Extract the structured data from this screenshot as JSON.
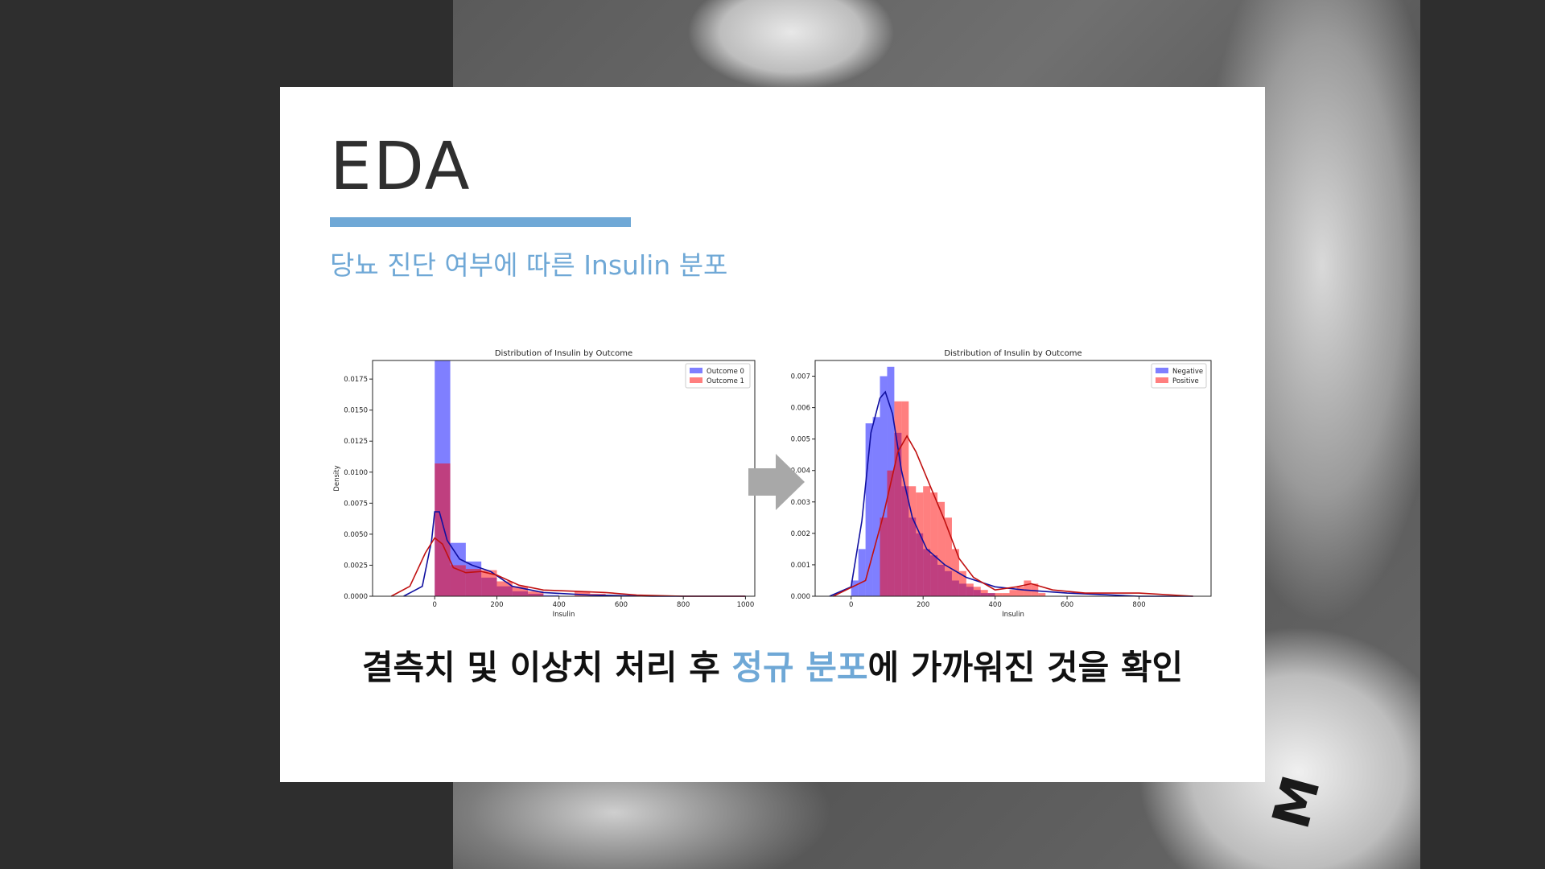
{
  "slide": {
    "title": "EDA",
    "subtitle": "당뇨 진단 여부에 따른 Insulin 분포",
    "caption_before": "결측치 및 이상치 처리 후 ",
    "caption_highlight": "정규 분포",
    "caption_after": "에 가까워진 것을 확인",
    "accent_color": "#6fa8d6"
  },
  "chart_data": [
    {
      "type": "histogram",
      "title": "Distribution of Insulin by Outcome",
      "xlabel": "Insulin",
      "ylabel": "Density",
      "xlim": [
        -200,
        1030
      ],
      "ylim": [
        0,
        0.019
      ],
      "xticks": [
        0,
        200,
        400,
        600,
        800,
        1000
      ],
      "xtick_labels": [
        "0",
        "200",
        "400",
        "600",
        "800",
        "1000"
      ],
      "yticks": [
        0,
        0.0025,
        0.005,
        0.0075,
        0.01,
        0.0125,
        0.015,
        0.0175
      ],
      "ytick_labels": [
        "0.0000",
        "0.0025",
        "0.0050",
        "0.0075",
        "0.0100",
        "0.0125",
        "0.0150",
        "0.0175"
      ],
      "legend_position": "top-right",
      "bin_width": 50,
      "series": [
        {
          "name": "Outcome 0",
          "color": "#0000ff",
          "bin_starts": [
            0,
            50,
            100,
            150,
            200,
            250,
            300,
            350
          ],
          "values": [
            0.019,
            0.0043,
            0.0028,
            0.0015,
            0.0008,
            0.0004,
            0.0002,
            0.0001
          ],
          "kde": [
            [
              -100,
              0.0
            ],
            [
              -40,
              0.0008
            ],
            [
              -10,
              0.0045
            ],
            [
              0,
              0.0068
            ],
            [
              15,
              0.0068
            ],
            [
              40,
              0.0045
            ],
            [
              80,
              0.003
            ],
            [
              120,
              0.0025
            ],
            [
              180,
              0.002
            ],
            [
              250,
              0.0008
            ],
            [
              350,
              0.0003
            ],
            [
              500,
              0.0001
            ],
            [
              700,
              0.0
            ],
            [
              1000,
              0.0
            ]
          ]
        },
        {
          "name": "Outcome 1",
          "color": "#ff0000",
          "bin_starts": [
            0,
            50,
            100,
            150,
            200,
            250,
            300,
            450,
            500,
            550
          ],
          "values": [
            0.0107,
            0.0025,
            0.0022,
            0.0021,
            0.0012,
            0.0008,
            0.0004,
            0.0004,
            0.0002,
            0.0001
          ],
          "kde": [
            [
              -140,
              0.0
            ],
            [
              -80,
              0.0008
            ],
            [
              -30,
              0.0035
            ],
            [
              0,
              0.0047
            ],
            [
              25,
              0.0042
            ],
            [
              60,
              0.0023
            ],
            [
              100,
              0.0019
            ],
            [
              150,
              0.002
            ],
            [
              200,
              0.0017
            ],
            [
              270,
              0.0009
            ],
            [
              350,
              0.0005
            ],
            [
              450,
              0.0004
            ],
            [
              550,
              0.0003
            ],
            [
              650,
              0.0001
            ],
            [
              800,
              0.0
            ],
            [
              1000,
              0.0
            ]
          ]
        }
      ]
    },
    {
      "type": "histogram",
      "title": "Distribution of Insulin by Outcome",
      "xlabel": "Insulin",
      "ylabel": "",
      "xlim": [
        -100,
        1000
      ],
      "ylim": [
        0,
        0.0075
      ],
      "xticks": [
        0,
        200,
        400,
        600,
        800
      ],
      "xtick_labels": [
        "0",
        "200",
        "400",
        "600",
        "800"
      ],
      "yticks": [
        0,
        0.001,
        0.002,
        0.003,
        0.004,
        0.005,
        0.006,
        0.007
      ],
      "ytick_labels": [
        "0.000",
        "0.001",
        "0.002",
        "0.003",
        "0.004",
        "0.005",
        "0.006",
        "0.007"
      ],
      "legend_position": "top-right",
      "bin_width": 20,
      "series": [
        {
          "name": "Negative",
          "color": "#0000ff",
          "bin_starts": [
            0,
            20,
            40,
            60,
            80,
            100,
            120,
            140,
            160,
            180,
            200,
            220,
            240,
            260,
            280,
            300,
            320,
            340,
            360,
            380
          ],
          "values": [
            0.0005,
            0.0015,
            0.0055,
            0.0057,
            0.007,
            0.0073,
            0.0052,
            0.0035,
            0.0025,
            0.002,
            0.0015,
            0.0013,
            0.001,
            0.0008,
            0.0005,
            0.0004,
            0.0003,
            0.0002,
            0.0001,
            0.0001
          ],
          "kde": [
            [
              -60,
              0.0
            ],
            [
              0,
              0.0003
            ],
            [
              30,
              0.0024
            ],
            [
              55,
              0.0052
            ],
            [
              80,
              0.0063
            ],
            [
              95,
              0.0065
            ],
            [
              115,
              0.0058
            ],
            [
              140,
              0.004
            ],
            [
              170,
              0.0025
            ],
            [
              210,
              0.0015
            ],
            [
              260,
              0.001
            ],
            [
              320,
              0.0006
            ],
            [
              400,
              0.0003
            ],
            [
              480,
              0.0002
            ],
            [
              600,
              0.0001
            ],
            [
              800,
              0.0
            ],
            [
              950,
              0.0
            ]
          ]
        },
        {
          "name": "Positive",
          "color": "#ff0000",
          "bin_starts": [
            80,
            100,
            120,
            140,
            160,
            180,
            200,
            220,
            240,
            260,
            280,
            300,
            320,
            340,
            360,
            380,
            400,
            420,
            440,
            460,
            480,
            500,
            520
          ],
          "values": [
            0.0025,
            0.004,
            0.0062,
            0.0062,
            0.0035,
            0.0033,
            0.0035,
            0.0033,
            0.003,
            0.0025,
            0.0015,
            0.0008,
            0.0004,
            0.0003,
            0.0002,
            0.0001,
            0.0001,
            0.0001,
            0.0002,
            0.0003,
            0.0005,
            0.0004,
            0.0001
          ],
          "kde": [
            [
              -50,
              0.0
            ],
            [
              40,
              0.0005
            ],
            [
              90,
              0.0026
            ],
            [
              130,
              0.0046
            ],
            [
              155,
              0.0051
            ],
            [
              180,
              0.0046
            ],
            [
              220,
              0.0035
            ],
            [
              260,
              0.0024
            ],
            [
              300,
              0.0012
            ],
            [
              340,
              0.0006
            ],
            [
              400,
              0.0002
            ],
            [
              460,
              0.0003
            ],
            [
              500,
              0.0004
            ],
            [
              560,
              0.0002
            ],
            [
              650,
              0.0001
            ],
            [
              800,
              0.0001
            ],
            [
              950,
              0.0
            ]
          ]
        }
      ]
    }
  ]
}
